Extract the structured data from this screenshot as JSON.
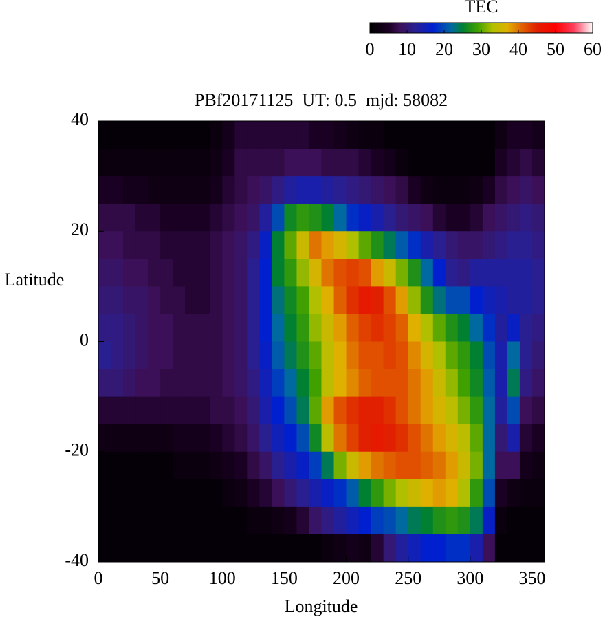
{
  "chart_data": {
    "type": "heatmap",
    "title": "PBf20171125  UT: 0.5  mjd: 58082",
    "xlabel": "Longitude",
    "ylabel": "Latitude",
    "x": [
      5,
      15,
      25,
      35,
      45,
      55,
      65,
      75,
      85,
      95,
      105,
      115,
      125,
      135,
      145,
      155,
      165,
      175,
      185,
      195,
      205,
      215,
      225,
      235,
      245,
      255,
      265,
      275,
      285,
      295,
      305,
      315,
      325,
      335,
      345,
      355
    ],
    "y": [
      37.5,
      32.5,
      27.5,
      22.5,
      17.5,
      12.5,
      7.5,
      2.5,
      -2.5,
      -7.5,
      -12.5,
      -17.5,
      -22.5,
      -27.5,
      -32.5,
      -37.5
    ],
    "values": [
      [
        1,
        1,
        1,
        1,
        1,
        1,
        1,
        1,
        1,
        2,
        4,
        6,
        6,
        6,
        6,
        6,
        6,
        5,
        5,
        4,
        3,
        2,
        2,
        1,
        1,
        1,
        1,
        1,
        1,
        1,
        1,
        1,
        3,
        5,
        5,
        4
      ],
      [
        2,
        2,
        2,
        2,
        2,
        2,
        2,
        2,
        2,
        3,
        5,
        7,
        7,
        7,
        7,
        8,
        8,
        8,
        7,
        7,
        7,
        6,
        5,
        4,
        2,
        1,
        1,
        1,
        1,
        1,
        1,
        1,
        5,
        6,
        7,
        6
      ],
      [
        5,
        5,
        4,
        4,
        3,
        3,
        3,
        3,
        3,
        4,
        6,
        7,
        8,
        9,
        11,
        13,
        14,
        14,
        13,
        12,
        11,
        10,
        9,
        8,
        7,
        5,
        3,
        2,
        2,
        2,
        3,
        5,
        7,
        8,
        9,
        8
      ],
      [
        7,
        7,
        7,
        6,
        6,
        5,
        5,
        5,
        5,
        6,
        7,
        8,
        9,
        13,
        20,
        26,
        28,
        27,
        25,
        22,
        18,
        16,
        14,
        12,
        10,
        9,
        8,
        6,
        5,
        5,
        6,
        8,
        9,
        10,
        11,
        10
      ],
      [
        8,
        8,
        7,
        7,
        7,
        6,
        6,
        6,
        6,
        7,
        8,
        9,
        11,
        16,
        25,
        30,
        35,
        40,
        38,
        36,
        33,
        30,
        27,
        24,
        21,
        18,
        14,
        12,
        10,
        9,
        9,
        10,
        11,
        12,
        12,
        11
      ],
      [
        9,
        9,
        8,
        8,
        7,
        7,
        6,
        6,
        6,
        7,
        8,
        9,
        12,
        17,
        25,
        28,
        32,
        36,
        40,
        42,
        43,
        42,
        38,
        35,
        31,
        27,
        22,
        17,
        12,
        11,
        13,
        13,
        13,
        13,
        13,
        12
      ],
      [
        10,
        10,
        9,
        9,
        8,
        7,
        7,
        6,
        6,
        7,
        8,
        9,
        12,
        17,
        23,
        26,
        29,
        33,
        37,
        41,
        44,
        46,
        45,
        42,
        38,
        32,
        27,
        23,
        20,
        20,
        17,
        15,
        14,
        13,
        13,
        12
      ],
      [
        11,
        11,
        10,
        9,
        8,
        8,
        7,
        7,
        7,
        7,
        8,
        9,
        12,
        17,
        22,
        25,
        28,
        32,
        35,
        38,
        41,
        43,
        44,
        43,
        41,
        37,
        33,
        30,
        27,
        25,
        22,
        18,
        13,
        16,
        12,
        11
      ],
      [
        12,
        11,
        10,
        9,
        8,
        8,
        7,
        7,
        7,
        7,
        8,
        9,
        12,
        16,
        21,
        24,
        27,
        30,
        34,
        37,
        40,
        42,
        42,
        43,
        42,
        39,
        36,
        33,
        30,
        28,
        25,
        20,
        14,
        22,
        12,
        10
      ],
      [
        10,
        10,
        9,
        8,
        8,
        7,
        7,
        7,
        7,
        7,
        8,
        9,
        11,
        15,
        19,
        22,
        25,
        29,
        34,
        37,
        39,
        41,
        42,
        42,
        42,
        40,
        38,
        35,
        32,
        29,
        26,
        21,
        14,
        24,
        11,
        9
      ],
      [
        6,
        6,
        6,
        6,
        6,
        6,
        6,
        6,
        6,
        7,
        7,
        8,
        10,
        14,
        17,
        20,
        24,
        30,
        38,
        42,
        44,
        45,
        45,
        44,
        42,
        40,
        38,
        36,
        34,
        31,
        28,
        22,
        13,
        20,
        8,
        7
      ],
      [
        3,
        3,
        3,
        3,
        3,
        3,
        4,
        4,
        4,
        5,
        6,
        7,
        9,
        12,
        15,
        17,
        20,
        26,
        34,
        40,
        43,
        45,
        46,
        45,
        44,
        42,
        40,
        38,
        36,
        34,
        30,
        22,
        10,
        14,
        6,
        5
      ],
      [
        1,
        1,
        1,
        1,
        1,
        1,
        2,
        2,
        2,
        3,
        4,
        5,
        7,
        9,
        12,
        14,
        16,
        19,
        24,
        31,
        35,
        38,
        40,
        41,
        42,
        42,
        41,
        40,
        38,
        35,
        31,
        22,
        8,
        8,
        4,
        3
      ],
      [
        1,
        1,
        1,
        1,
        1,
        1,
        1,
        1,
        1,
        1,
        2,
        3,
        5,
        6,
        8,
        10,
        12,
        14,
        16,
        18,
        21,
        25,
        28,
        31,
        33,
        35,
        37,
        38,
        37,
        33,
        28,
        20,
        5,
        3,
        2,
        2
      ],
      [
        1,
        1,
        1,
        1,
        1,
        1,
        1,
        1,
        1,
        1,
        1,
        1,
        2,
        2,
        3,
        4,
        6,
        9,
        11,
        13,
        15,
        17,
        19,
        20,
        22,
        24,
        25,
        27,
        28,
        27,
        24,
        16,
        2,
        1,
        1,
        1
      ],
      [
        1,
        1,
        1,
        1,
        1,
        1,
        1,
        1,
        1,
        1,
        1,
        1,
        1,
        1,
        1,
        1,
        1,
        1,
        2,
        3,
        4,
        3,
        6,
        10,
        13,
        15,
        17,
        17,
        18,
        18,
        14,
        8,
        1,
        1,
        1,
        1
      ]
    ],
    "xlim": [
      0,
      360
    ],
    "ylim": [
      -40,
      40
    ],
    "xticks": [
      0,
      50,
      100,
      150,
      200,
      250,
      300,
      350
    ],
    "yticks": [
      -40,
      -20,
      0,
      20,
      40
    ],
    "colorbar": {
      "label": "TEC",
      "lim": [
        0,
        60
      ],
      "ticks": [
        0,
        10,
        20,
        30,
        40,
        50,
        60
      ]
    },
    "colorscale": [
      [
        0,
        "#000000"
      ],
      [
        5,
        "#1a0022"
      ],
      [
        8,
        "#3c1058"
      ],
      [
        12,
        "#2a1f90"
      ],
      [
        17,
        "#0020d0"
      ],
      [
        22,
        "#006aa0"
      ],
      [
        25,
        "#008030"
      ],
      [
        29,
        "#40a000"
      ],
      [
        33,
        "#b0c000"
      ],
      [
        37,
        "#e0b000"
      ],
      [
        41,
        "#e06000"
      ],
      [
        45,
        "#e02000"
      ],
      [
        50,
        "#ff0000"
      ],
      [
        55,
        "#ff4060"
      ],
      [
        60,
        "#ffffff"
      ]
    ]
  }
}
